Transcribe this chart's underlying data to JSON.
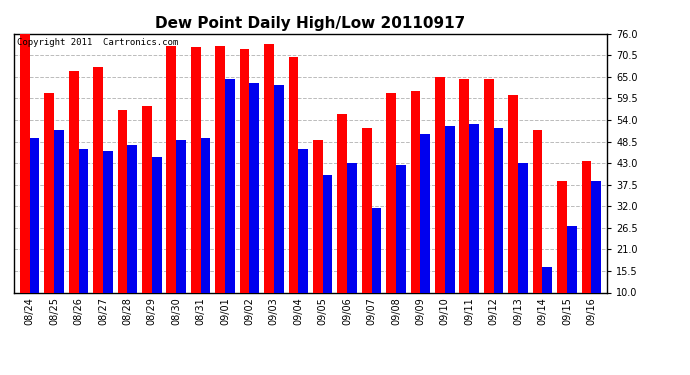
{
  "title": "Dew Point Daily High/Low 20110917",
  "copyright": "Copyright 2011  Cartronics.com",
  "yticks": [
    10.0,
    15.5,
    21.0,
    26.5,
    32.0,
    37.5,
    43.0,
    48.5,
    54.0,
    59.5,
    65.0,
    70.5,
    76.0
  ],
  "ylim": [
    10.0,
    76.0
  ],
  "dates": [
    "08/24",
    "08/25",
    "08/26",
    "08/27",
    "08/28",
    "08/29",
    "08/30",
    "08/31",
    "09/01",
    "09/02",
    "09/03",
    "09/04",
    "09/05",
    "09/06",
    "09/07",
    "09/08",
    "09/09",
    "09/10",
    "09/11",
    "09/12",
    "09/13",
    "09/14",
    "09/15",
    "09/16"
  ],
  "high": [
    76.0,
    61.0,
    66.5,
    67.5,
    56.5,
    57.5,
    73.0,
    72.5,
    73.0,
    72.0,
    73.5,
    70.0,
    49.0,
    55.5,
    52.0,
    61.0,
    61.5,
    65.0,
    64.5,
    64.5,
    60.5,
    51.5,
    38.5,
    43.5
  ],
  "low": [
    49.5,
    51.5,
    46.5,
    46.0,
    47.5,
    44.5,
    49.0,
    49.5,
    64.5,
    63.5,
    63.0,
    46.5,
    40.0,
    43.0,
    31.5,
    42.5,
    50.5,
    52.5,
    53.0,
    52.0,
    43.0,
    16.5,
    27.0,
    38.5
  ],
  "bar_color_high": "#FF0000",
  "bar_color_low": "#0000EE",
  "bg_color": "#FFFFFF",
  "grid_color": "#BBBBBB",
  "title_fontsize": 11,
  "tick_fontsize": 7,
  "bar_width": 0.4,
  "ybase": 10.0
}
